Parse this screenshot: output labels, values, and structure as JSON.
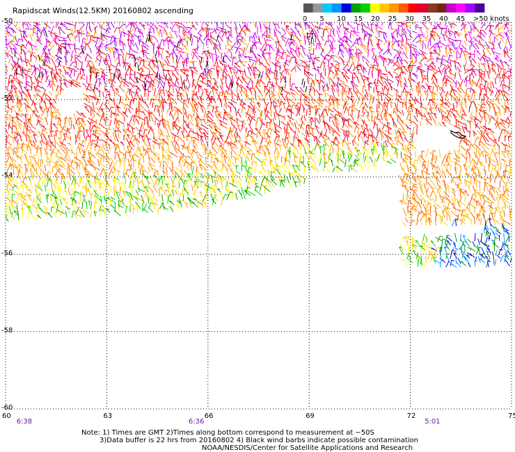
{
  "title": "Rapidscat Winds(12.5KM) 20160802 ascending",
  "colorbar": {
    "labels": [
      "0",
      "5",
      "10",
      "15",
      "20",
      "25",
      "30",
      "35",
      "40",
      "45",
      ">50 knots"
    ],
    "colors": [
      "#555555",
      "#999999",
      "#00c8ff",
      "#0096ff",
      "#0000e0",
      "#00a000",
      "#00d000",
      "#ffff00",
      "#ffc800",
      "#ff9600",
      "#ff5a00",
      "#ff0000",
      "#e00030",
      "#8c3a1e",
      "#6e2814",
      "#c800c8",
      "#ff00ff",
      "#a000ff",
      "#4b0096"
    ]
  },
  "map": {
    "lat_ticks": [
      "-50",
      "-52",
      "-54",
      "-56",
      "-58",
      "-60"
    ],
    "lon_ticks": [
      "60",
      "63",
      "66",
      "69",
      "72",
      "75"
    ],
    "lat_range": [
      -60,
      -50
    ],
    "lon_range": [
      60,
      75
    ],
    "grid": true,
    "time_labels": [
      {
        "text": "6:38",
        "lon": 60.2
      },
      {
        "text": "6:36",
        "lon": 65.3
      },
      {
        "text": "5:01",
        "lon": 72.3
      }
    ]
  },
  "notes": {
    "line1": "Note: 1) Times are GMT 2)Times along bottom correspond to measurement at −50S",
    "line2": "3)Data buffer is 22 hrs from 20160802 4) Black wind barbs indicate possible contamination",
    "line3": "NOAA/NESDIS/Center for Satellite Applications and Research"
  }
}
